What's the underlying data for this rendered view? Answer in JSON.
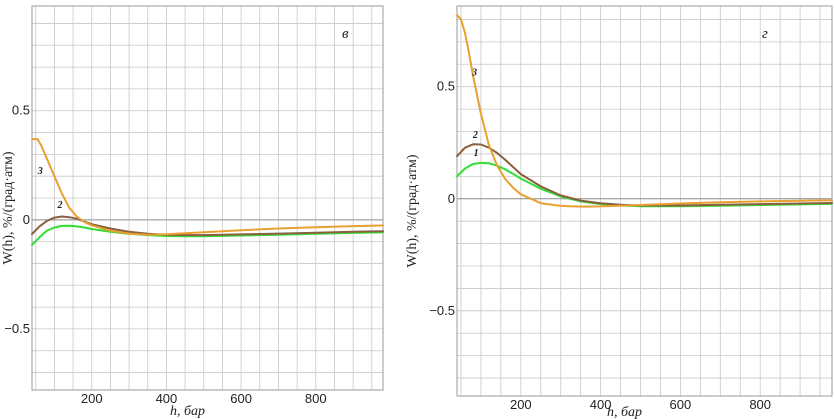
{
  "chart_data": [
    {
      "type": "line",
      "panel_label": "в",
      "xlabel": "h, бар",
      "ylabel": "W(h), %/(град·атм)",
      "xlim": [
        40,
        980
      ],
      "ylim": [
        -0.78,
        0.98
      ],
      "grid": true,
      "x_ticks": [
        200,
        400,
        600,
        800
      ],
      "x_tick_labels": [
        "200",
        "400",
        "600",
        "800"
      ],
      "y_ticks": [
        -0.5,
        0,
        0.5
      ],
      "y_tick_labels": [
        "−0.5",
        "0",
        "0.5"
      ],
      "series": [
        {
          "name": "1",
          "color": "#33dd33",
          "x": [
            40,
            60,
            80,
            100,
            120,
            140,
            160,
            180,
            200,
            250,
            300,
            350,
            400,
            450,
            500,
            600,
            700,
            800,
            900,
            980
          ],
          "y": [
            -0.115,
            -0.08,
            -0.05,
            -0.035,
            -0.028,
            -0.027,
            -0.03,
            -0.035,
            -0.042,
            -0.055,
            -0.064,
            -0.07,
            -0.074,
            -0.075,
            -0.075,
            -0.072,
            -0.068,
            -0.064,
            -0.06,
            -0.057
          ]
        },
        {
          "name": "2",
          "color": "#8a6040",
          "x": [
            40,
            60,
            80,
            100,
            120,
            140,
            160,
            180,
            200,
            250,
            300,
            350,
            400,
            450,
            500,
            600,
            700,
            800,
            900,
            980
          ],
          "y": [
            -0.065,
            -0.03,
            -0.005,
            0.01,
            0.015,
            0.012,
            0.005,
            -0.008,
            -0.02,
            -0.04,
            -0.055,
            -0.064,
            -0.068,
            -0.07,
            -0.07,
            -0.067,
            -0.063,
            -0.059,
            -0.055,
            -0.052
          ]
        },
        {
          "name": "3",
          "color": "#e8a030",
          "x": [
            40,
            55,
            65,
            80,
            100,
            120,
            140,
            160,
            180,
            200,
            250,
            300,
            350,
            400,
            450,
            500,
            600,
            700,
            800,
            900,
            980
          ],
          "y": [
            0.37,
            0.37,
            0.34,
            0.28,
            0.2,
            0.12,
            0.055,
            0.015,
            -0.01,
            -0.025,
            -0.05,
            -0.063,
            -0.068,
            -0.066,
            -0.062,
            -0.057,
            -0.048,
            -0.04,
            -0.034,
            -0.029,
            -0.026
          ]
        }
      ],
      "curve_labels": [
        "1",
        "2",
        "3"
      ]
    },
    {
      "type": "line",
      "panel_label": "г",
      "xlabel": "h, бар",
      "ylabel": "W(h), %/(град·атм)",
      "xlim": [
        40,
        980
      ],
      "ylim": [
        -0.88,
        0.86
      ],
      "grid": true,
      "x_ticks": [
        200,
        400,
        600,
        800
      ],
      "x_tick_labels": [
        "200",
        "400",
        "600",
        "800"
      ],
      "y_ticks": [
        -0.5,
        0,
        0.5
      ],
      "y_tick_labels": [
        "−0.5",
        "0",
        "0.5"
      ],
      "series": [
        {
          "name": "1",
          "color": "#33dd33",
          "x": [
            40,
            60,
            80,
            100,
            120,
            140,
            160,
            180,
            200,
            250,
            300,
            350,
            400,
            450,
            500,
            600,
            700,
            800,
            900,
            980
          ],
          "y": [
            0.1,
            0.135,
            0.155,
            0.16,
            0.158,
            0.148,
            0.132,
            0.112,
            0.09,
            0.045,
            0.01,
            -0.012,
            -0.024,
            -0.03,
            -0.033,
            -0.033,
            -0.031,
            -0.028,
            -0.025,
            -0.023
          ]
        },
        {
          "name": "2",
          "color": "#8a6040",
          "x": [
            40,
            60,
            80,
            100,
            120,
            140,
            160,
            180,
            200,
            250,
            300,
            350,
            400,
            450,
            500,
            600,
            700,
            800,
            900,
            980
          ],
          "y": [
            0.19,
            0.228,
            0.243,
            0.242,
            0.228,
            0.205,
            0.175,
            0.142,
            0.11,
            0.055,
            0.015,
            -0.008,
            -0.02,
            -0.027,
            -0.03,
            -0.03,
            -0.027,
            -0.024,
            -0.021,
            -0.019
          ]
        },
        {
          "name": "3",
          "color": "#e8a030",
          "x": [
            40,
            50,
            60,
            70,
            80,
            100,
            120,
            140,
            160,
            180,
            200,
            250,
            300,
            350,
            400,
            450,
            500,
            600,
            700,
            800,
            900,
            980
          ],
          "y": [
            0.82,
            0.8,
            0.74,
            0.65,
            0.55,
            0.38,
            0.24,
            0.15,
            0.09,
            0.05,
            0.02,
            -0.02,
            -0.032,
            -0.035,
            -0.034,
            -0.031,
            -0.028,
            -0.021,
            -0.016,
            -0.012,
            -0.009,
            -0.007
          ]
        }
      ],
      "curve_labels": [
        "1",
        "2",
        "3"
      ]
    }
  ]
}
